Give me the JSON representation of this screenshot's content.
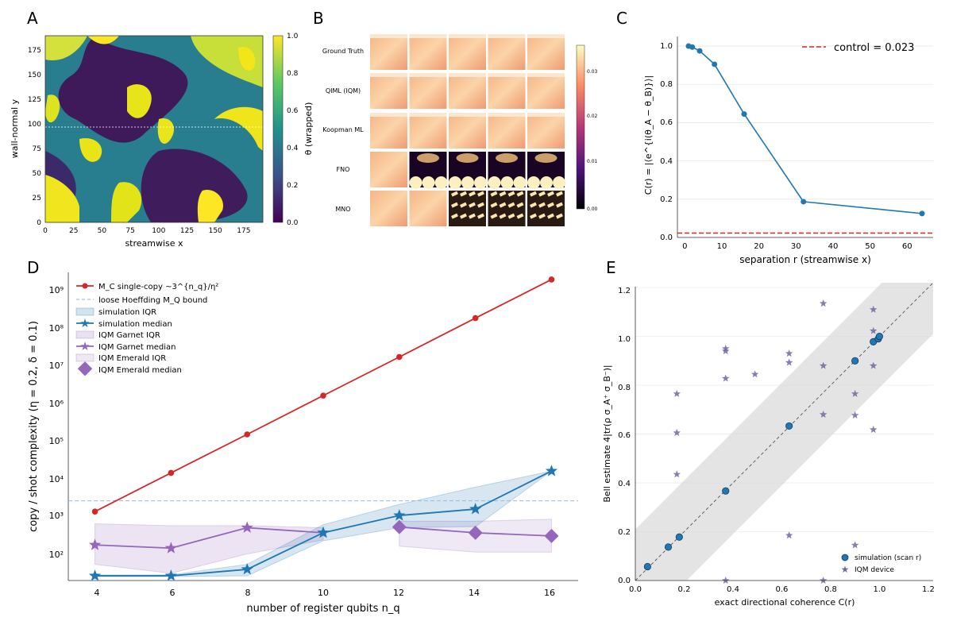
{
  "panels": {
    "A": {
      "letter": "A",
      "xlabel": "streamwise x",
      "ylabel": "wall-normal y",
      "xticks": [
        "0",
        "25",
        "50",
        "75",
        "100",
        "125",
        "150",
        "175"
      ],
      "yticks": [
        "0",
        "25",
        "50",
        "75",
        "100",
        "125",
        "150",
        "175"
      ],
      "cbar_label": "θ (wrapped)",
      "cbar_ticks": [
        "0.0",
        "0.2",
        "0.4",
        "0.6",
        "0.8",
        "1.0"
      ]
    },
    "B": {
      "letter": "B",
      "rows": [
        "Ground Truth",
        "QIML (IQM)",
        "Koopman ML",
        "FNO",
        "MNO"
      ],
      "cbar_ticks": [
        "0.03",
        "0.02",
        "0.01",
        "0.00"
      ]
    },
    "C": {
      "letter": "C",
      "xlabel": "separation r (streamwise x)",
      "ylabel": "C(r) = |⟨e^{i(θ_A − θ_B)}⟩|",
      "xticks": [
        "0",
        "10",
        "20",
        "30",
        "40",
        "50",
        "60"
      ],
      "yticks": [
        "0.0",
        "0.2",
        "0.4",
        "0.6",
        "0.8",
        "1.0"
      ],
      "legend": "control = 0.023"
    },
    "D": {
      "letter": "D",
      "xlabel": "number of register qubits n_q",
      "ylabel": "copy / shot complexity (η = 0.2, δ = 0.1)",
      "xticks": [
        "4",
        "6",
        "8",
        "10",
        "12",
        "14",
        "16"
      ],
      "yticks": [
        "10²",
        "10³",
        "10⁴",
        "10⁵",
        "10⁶",
        "10⁷",
        "10⁸",
        "10⁹"
      ],
      "legend": [
        "M_C single-copy ~3^{n_q}/η²",
        "loose Hoeffding M_Q bound",
        "simulation IQR",
        "simulation median",
        "IQM Garnet IQR",
        "IQM Garnet median",
        "IQM Emerald IQR",
        "IQM Emerald median"
      ]
    },
    "E": {
      "letter": "E",
      "xlabel": "exact directional coherence C(r)",
      "ylabel": "Bell estimate 4|tr(ρ σ_A⁺ σ_B⁻)|",
      "xticks": [
        "0.0",
        "0.2",
        "0.4",
        "0.6",
        "0.8",
        "1.0",
        "1.2"
      ],
      "yticks": [
        "0.0",
        "0.2",
        "0.4",
        "0.6",
        "0.8",
        "1.0",
        "1.2"
      ],
      "legend": [
        "simulation (scan r)",
        "IQM device"
      ]
    }
  },
  "colors": {
    "red": "#d62728",
    "blue": "#1f77b4",
    "purple": "#9467bd",
    "iqm_star": "#6c6a9e",
    "control": "#d62728"
  },
  "chart_data": [
    {
      "id": "C",
      "type": "line",
      "xlim": [
        -2,
        67
      ],
      "ylim": [
        0,
        1.05
      ],
      "series": [
        {
          "x": [
            1,
            2,
            4,
            8,
            16,
            32,
            64
          ],
          "values": [
            1.0,
            0.995,
            0.975,
            0.905,
            0.645,
            0.187,
            0.125
          ]
        }
      ],
      "control": 0.023
    },
    {
      "id": "D",
      "type": "line",
      "log_y": true,
      "xlim": [
        3.3,
        16.7
      ],
      "ylim_exp": [
        1.6,
        9.2
      ],
      "x": [
        4,
        6,
        8,
        10,
        12,
        14,
        16
      ],
      "series": [
        {
          "name": "M_C single-copy",
          "values": [
            2000,
            18000,
            160000,
            1450000,
            13000000,
            118000000,
            1060000000
          ]
        },
        {
          "name": "simulation median",
          "values": [
            52,
            52,
            75,
            600,
            1600,
            2300,
            20000
          ]
        },
        {
          "name": "simulation IQR lower",
          "values": [
            50,
            50,
            52,
            380,
            800,
            850,
            20000
          ]
        },
        {
          "name": "simulation IQR upper",
          "values": [
            55,
            55,
            100,
            950,
            3000,
            8000,
            20000
          ]
        },
        {
          "name": "IQM Garnet median",
          "values": [
            300,
            250,
            800,
            600,
            null,
            null,
            null
          ]
        },
        {
          "name": "IQM Garnet IQR lower",
          "values": [
            100,
            60,
            180,
            400,
            null,
            null,
            null
          ]
        },
        {
          "name": "IQM Garnet IQR upper",
          "values": [
            1000,
            900,
            900,
            800,
            null,
            null,
            null
          ]
        },
        {
          "name": "IQM Emerald median",
          "values": [
            null,
            null,
            null,
            null,
            830,
            600,
            500
          ]
        },
        {
          "name": "IQM Emerald IQR lower",
          "values": [
            null,
            null,
            null,
            null,
            280,
            200,
            200
          ]
        },
        {
          "name": "IQM Emerald IQR upper",
          "values": [
            null,
            null,
            null,
            null,
            1150,
            1150,
            1300
          ]
        }
      ],
      "hoeffding_bound": 3700
    },
    {
      "id": "E",
      "type": "scatter",
      "xlim": [
        0,
        1.22
      ],
      "ylim": [
        0,
        1.22
      ],
      "series": [
        {
          "name": "simulation (scan r)",
          "points": [
            [
              0.05,
              0.057
            ],
            [
              0.135,
              0.137
            ],
            [
              0.18,
              0.178
            ],
            [
              0.37,
              0.367
            ],
            [
              0.63,
              0.633
            ],
            [
              0.9,
              0.9
            ],
            [
              0.975,
              0.978
            ],
            [
              0.995,
              0.99
            ],
            [
              1.0,
              1.0
            ]
          ]
        },
        {
          "name": "IQM device",
          "points": [
            [
              0.17,
              0.765
            ],
            [
              0.17,
              0.605
            ],
            [
              0.17,
              0.435
            ],
            [
              0.37,
              0.95
            ],
            [
              0.37,
              0.94
            ],
            [
              0.37,
              0.828
            ],
            [
              0.37,
              0.0
            ],
            [
              0.49,
              0.845
            ],
            [
              0.63,
              0.93
            ],
            [
              0.63,
              0.893
            ],
            [
              0.63,
              0.185
            ],
            [
              0.77,
              1.135
            ],
            [
              0.77,
              0.88
            ],
            [
              0.77,
              0.68
            ],
            [
              0.77,
              0.0
            ],
            [
              0.9,
              0.765
            ],
            [
              0.9,
              0.677
            ],
            [
              0.9,
              0.145
            ],
            [
              0.975,
              1.11
            ],
            [
              0.975,
              1.023
            ],
            [
              0.975,
              0.88
            ],
            [
              0.975,
              0.618
            ]
          ]
        }
      ]
    }
  ]
}
